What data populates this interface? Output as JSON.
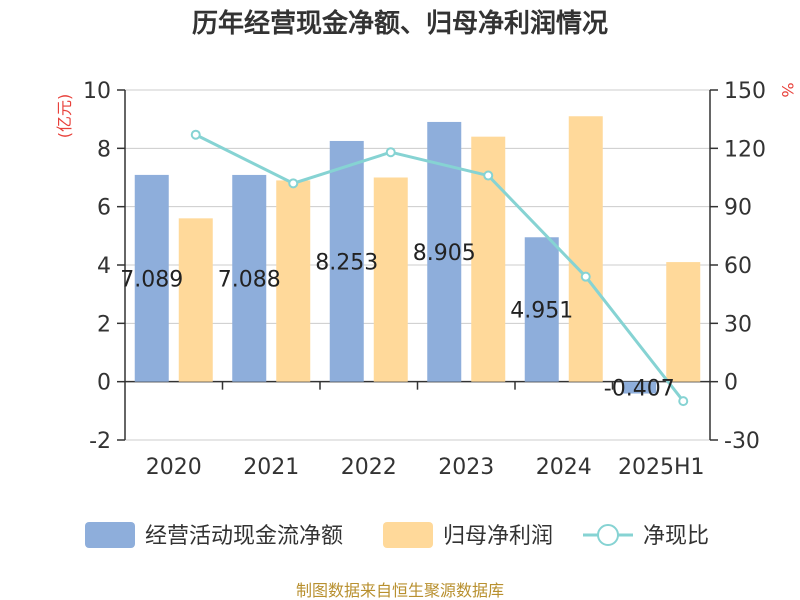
{
  "chart_data": {
    "type": "bar",
    "title": "历年经营现金净额、归母净利润情况",
    "categories": [
      "2020",
      "2021",
      "2022",
      "2023",
      "2024",
      "2025H1"
    ],
    "series": [
      {
        "name": "经营活动现金流净额",
        "type": "bar",
        "axis": "left",
        "color": "#8eaedb",
        "values": [
          7.089,
          7.088,
          8.253,
          8.905,
          4.951,
          -0.407
        ],
        "labels": [
          "7.089",
          "7.088",
          "8.253",
          "8.905",
          "4.951",
          "-0.407"
        ]
      },
      {
        "name": "归母净利润",
        "type": "bar",
        "axis": "left",
        "color": "#ffd99a",
        "values": [
          5.6,
          6.9,
          7.0,
          8.4,
          9.1,
          4.1
        ]
      },
      {
        "name": "净现比",
        "type": "line",
        "axis": "right",
        "color": "#86d3d3",
        "values": [
          127,
          102,
          118,
          106,
          54,
          -10
        ]
      }
    ],
    "left_axis": {
      "unit": "(亿元)",
      "ylim": [
        -2,
        10
      ],
      "ticks": [
        "-2",
        "0",
        "2",
        "4",
        "6",
        "8",
        "10"
      ]
    },
    "right_axis": {
      "unit": "%",
      "ylim": [
        -30,
        150
      ],
      "ticks": [
        "-30",
        "0",
        "30",
        "60",
        "90",
        "120",
        "150"
      ]
    },
    "grid": true,
    "legend_position": "bottom",
    "source": "制图数据来自恒生聚源数据库"
  }
}
